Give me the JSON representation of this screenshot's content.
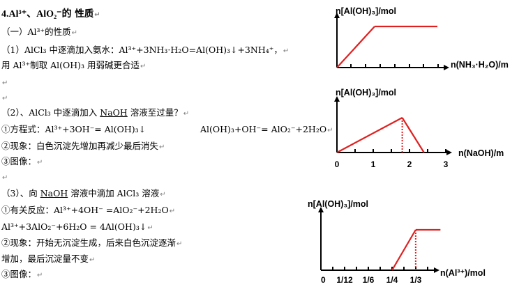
{
  "title": {
    "part1": "4.Al³⁺、AlO₂⁻的",
    "part2": " 性质"
  },
  "section1": {
    "heading": "（一）Al³⁺的性质",
    "item1_line1": "（1）AlCl₃ 中逐滴加入氨水：Al³⁺+3NH₃·H₂O=Al(OH)₃↓+3NH₄⁺，",
    "item1_line2": "用 Al³⁺制取 Al(OH)₃ 用弱碱更合适",
    "item2_pre": "（2）、AlCl₃ 中逐滴加入 ",
    "item2_u": "NaOH",
    "item2_post": " 溶液至过量？",
    "eq_label": "①方程式：Al³⁺+3OH⁻= Al(OH)₃↓",
    "eq_second": "Al(OH)₃+OH⁻= AlO₂⁻+2H₂O",
    "phenomenon": "②现象：白色沉淀先增加再减少最后消失",
    "graph": "③图像："
  },
  "section3": {
    "heading_pre": "（3）、向 ",
    "heading_u": "NaOH",
    "heading_post": " 溶液中滴加 AlCl₃ 溶液",
    "reaction1": "①有关反应：Al³⁺+4OH⁻ =AlO₂⁻+2H₂O",
    "reaction2": "Al³⁺+3AlO₂⁻+6H₂O = 4Al(OH)₃↓",
    "phenomenon1": "②现象：开始无沉淀生成，后来白色沉淀逐渐",
    "phenomenon2": "增加，最后沉淀量不变",
    "graph": "③图像："
  },
  "para_mark": "↵",
  "chart_data": [
    {
      "type": "line",
      "ylabel": "n[Al(OH)₃]/mol",
      "xlabel": "n(NH₃·H₂O)/m",
      "x": [
        0,
        0.6,
        1.0
      ],
      "y": [
        0,
        1,
        1
      ],
      "color": "#e02020"
    },
    {
      "type": "line",
      "ylabel": "n[Al(OH)₃]/mol",
      "xlabel": "n(NaOH)/m",
      "x_ticks": [
        "0",
        "1",
        "2",
        "3"
      ],
      "x": [
        0,
        1.8,
        2.4
      ],
      "y": [
        0,
        1,
        0
      ],
      "dashed_x": 1.8,
      "color": "#e02020"
    },
    {
      "type": "line",
      "ylabel": "n[Al(OH)₃]/mol",
      "xlabel": "n(Al³⁺)/mol",
      "x_ticks": [
        "0",
        "1/12",
        "1/6",
        "1/4",
        "1/3"
      ],
      "x": [
        0.25,
        0.333,
        0.42
      ],
      "y": [
        0,
        1,
        1
      ],
      "dashed_x": 0.333,
      "color": "#e02020"
    }
  ]
}
